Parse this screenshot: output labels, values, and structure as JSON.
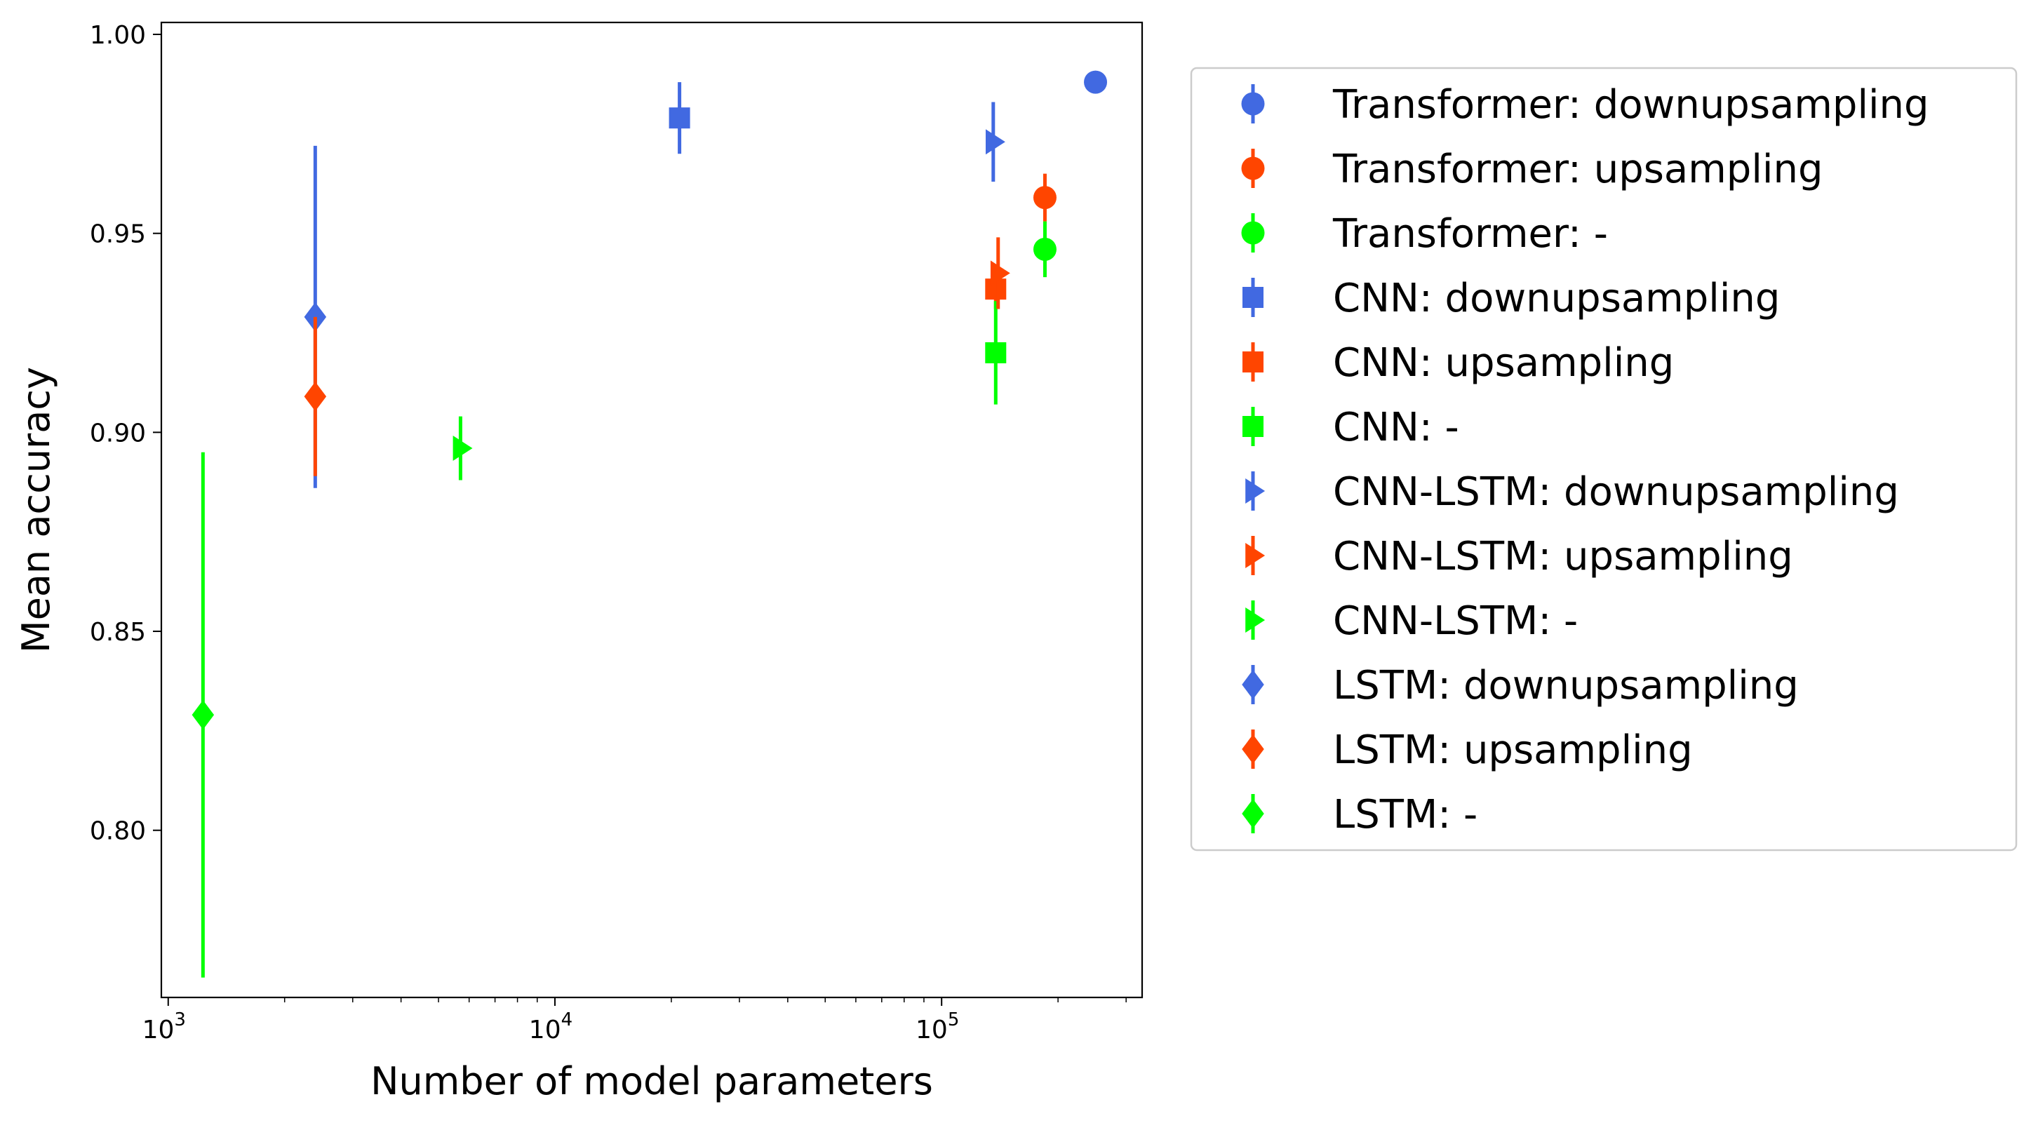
{
  "chart_data": {
    "type": "scatter",
    "xlabel": "Number of model parameters",
    "ylabel": "Mean accuracy",
    "xscale": "log",
    "xlim": [
      960,
      330000
    ],
    "ylim": [
      0.758,
      1.003
    ],
    "x_tick_base": "10",
    "x_ticks": [
      {
        "value": 1000,
        "exp": "3"
      },
      {
        "value": 10000,
        "exp": "4"
      },
      {
        "value": 100000,
        "exp": "5"
      }
    ],
    "y_ticks": [
      {
        "value": 0.8,
        "label": "0.80"
      },
      {
        "value": 0.85,
        "label": "0.85"
      },
      {
        "value": 0.9,
        "label": "0.90"
      },
      {
        "value": 0.95,
        "label": "0.95"
      },
      {
        "value": 1.0,
        "label": "1.00"
      }
    ],
    "grid": false,
    "legend_position": "outside-right",
    "colors": {
      "downupsampling": "#4169E1",
      "upsampling": "#FF4500",
      "none": "#00FF00"
    },
    "series": [
      {
        "name": "Transformer: downupsampling",
        "marker": "circle",
        "color": "#4169E1",
        "points": [
          {
            "x": 250000,
            "y": 0.988,
            "err": 0.001
          }
        ]
      },
      {
        "name": "Transformer: upsampling",
        "marker": "circle",
        "color": "#FF4500",
        "points": [
          {
            "x": 185000,
            "y": 0.959,
            "err": 0.006
          }
        ]
      },
      {
        "name": "Transformer: -",
        "marker": "circle",
        "color": "#00FF00",
        "points": [
          {
            "x": 185000,
            "y": 0.946,
            "err": 0.007
          }
        ]
      },
      {
        "name": "CNN: downupsampling",
        "marker": "square",
        "color": "#4169E1",
        "points": [
          {
            "x": 21000,
            "y": 0.979,
            "err": 0.009
          }
        ]
      },
      {
        "name": "CNN: upsampling",
        "marker": "square",
        "color": "#FF4500",
        "points": [
          {
            "x": 138000,
            "y": 0.936,
            "err": 0.005
          }
        ]
      },
      {
        "name": "CNN: -",
        "marker": "square",
        "color": "#00FF00",
        "points": [
          {
            "x": 138000,
            "y": 0.92,
            "err": 0.013
          }
        ]
      },
      {
        "name": "CNN-LSTM: downupsampling",
        "marker": "triangle-right",
        "color": "#4169E1",
        "points": [
          {
            "x": 136000,
            "y": 0.973,
            "err": 0.01
          }
        ]
      },
      {
        "name": "CNN-LSTM: upsampling",
        "marker": "triangle-right",
        "color": "#FF4500",
        "points": [
          {
            "x": 140000,
            "y": 0.94,
            "err": 0.009
          }
        ]
      },
      {
        "name": "CNN-LSTM: -",
        "marker": "triangle-right",
        "color": "#00FF00",
        "points": [
          {
            "x": 5700,
            "y": 0.896,
            "err": 0.008
          }
        ]
      },
      {
        "name": "LSTM: downupsampling",
        "marker": "diamond",
        "color": "#4169E1",
        "points": [
          {
            "x": 2400,
            "y": 0.929,
            "err": 0.043
          }
        ]
      },
      {
        "name": "LSTM: upsampling",
        "marker": "diamond",
        "color": "#FF4500",
        "points": [
          {
            "x": 2400,
            "y": 0.909,
            "err": 0.02
          }
        ]
      },
      {
        "name": "LSTM: -",
        "marker": "diamond",
        "color": "#00FF00",
        "points": [
          {
            "x": 1230,
            "y": 0.829,
            "err": 0.066
          }
        ]
      }
    ]
  }
}
